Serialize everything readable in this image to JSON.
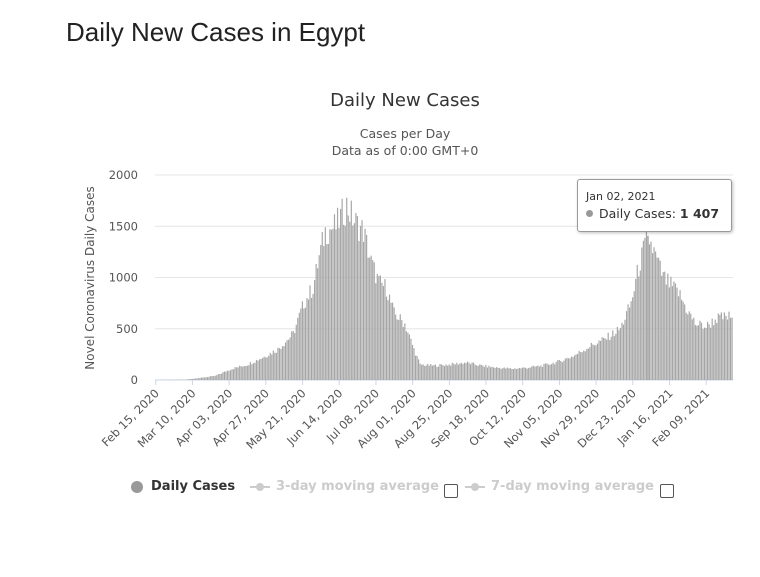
{
  "page": {
    "title": "Daily New Cases in Egypt"
  },
  "chart_data": {
    "type": "bar",
    "title": "Daily New Cases",
    "subtitle_lines": [
      "Cases per Day",
      "Data as of 0:00 GMT+0"
    ],
    "ylabel": "Novel Coronavirus Daily Cases",
    "xlabel": "",
    "ylim": [
      0,
      2000
    ],
    "yticks": [
      "0",
      "500",
      "1000",
      "1500",
      "2000"
    ],
    "xtick_labels": [
      "Feb 15, 2020",
      "Mar 10, 2020",
      "Apr 03, 2020",
      "Apr 27, 2020",
      "May 21, 2020",
      "Jun 14, 2020",
      "Jul 08, 2020",
      "Aug 01, 2020",
      "Aug 25, 2020",
      "Sep 18, 2020",
      "Oct 12, 2020",
      "Nov 05, 2020",
      "Nov 29, 2020",
      "Dec 23, 2020",
      "Jan 16, 2021",
      "Feb 09, 2021"
    ],
    "start_date": "2020-02-15",
    "end_date": "2021-02-26",
    "grid": true,
    "bar_color": "#a6a6a6",
    "keypoints": [
      [
        "2020-02-15",
        1
      ],
      [
        "2020-03-05",
        3
      ],
      [
        "2020-03-15",
        20
      ],
      [
        "2020-03-25",
        40
      ],
      [
        "2020-04-05",
        110
      ],
      [
        "2020-04-15",
        150
      ],
      [
        "2020-04-25",
        220
      ],
      [
        "2020-05-05",
        300
      ],
      [
        "2020-05-15",
        450
      ],
      [
        "2020-05-22",
        750
      ],
      [
        "2020-05-28",
        900
      ],
      [
        "2020-06-01",
        1200
      ],
      [
        "2020-06-05",
        1450
      ],
      [
        "2020-06-12",
        1500
      ],
      [
        "2020-06-19",
        1700
      ],
      [
        "2020-06-24",
        1550
      ],
      [
        "2020-06-30",
        1450
      ],
      [
        "2020-07-05",
        1150
      ],
      [
        "2020-07-10",
        950
      ],
      [
        "2020-07-15",
        900
      ],
      [
        "2020-07-20",
        650
      ],
      [
        "2020-07-27",
        550
      ],
      [
        "2020-08-02",
        300
      ],
      [
        "2020-08-06",
        150
      ],
      [
        "2020-08-15",
        140
      ],
      [
        "2020-08-25",
        150
      ],
      [
        "2020-09-05",
        170
      ],
      [
        "2020-09-15",
        140
      ],
      [
        "2020-09-25",
        120
      ],
      [
        "2020-10-05",
        110
      ],
      [
        "2020-10-15",
        120
      ],
      [
        "2020-10-25",
        140
      ],
      [
        "2020-11-05",
        180
      ],
      [
        "2020-11-15",
        240
      ],
      [
        "2020-11-25",
        330
      ],
      [
        "2020-12-05",
        400
      ],
      [
        "2020-12-15",
        500
      ],
      [
        "2020-12-22",
        750
      ],
      [
        "2020-12-27",
        1100
      ],
      [
        "2021-01-02",
        1407
      ],
      [
        "2021-01-07",
        1200
      ],
      [
        "2021-01-12",
        1000
      ],
      [
        "2021-01-17",
        920
      ],
      [
        "2021-01-22",
        850
      ],
      [
        "2021-01-27",
        700
      ],
      [
        "2021-02-02",
        550
      ],
      [
        "2021-02-09",
        520
      ],
      [
        "2021-02-16",
        600
      ],
      [
        "2021-02-26",
        620
      ]
    ]
  },
  "tooltip": {
    "date": "Jan 02, 2021",
    "series_label": "Daily Cases:",
    "value": "1 407"
  },
  "legend": {
    "items": [
      {
        "label": "Daily Cases",
        "active": true,
        "color": "#999999"
      },
      {
        "label": "3-day moving average",
        "active": false,
        "color": "#cccccc"
      },
      {
        "label": "7-day moving average",
        "active": false,
        "color": "#cccccc"
      }
    ]
  }
}
